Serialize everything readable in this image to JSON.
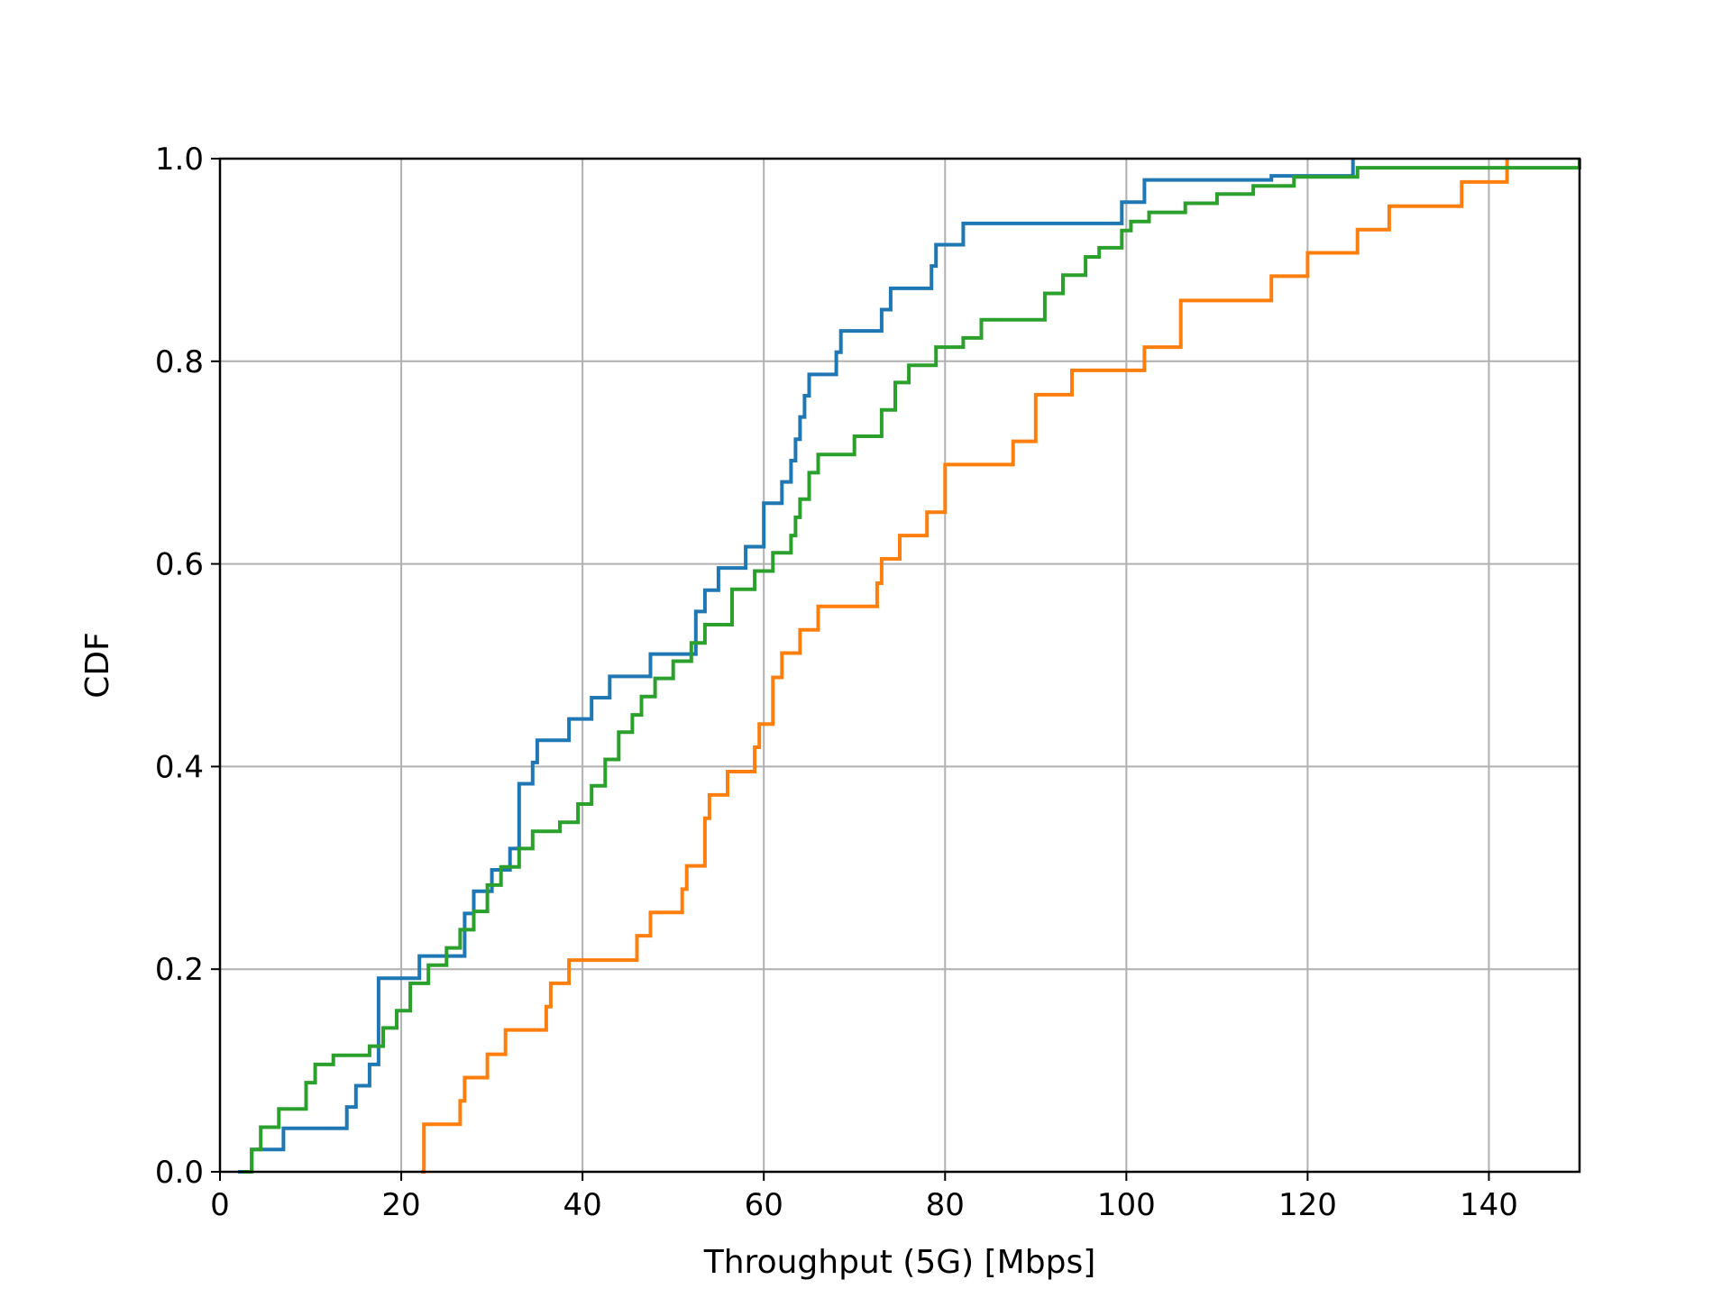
{
  "chart_data": {
    "type": "line",
    "step": true,
    "title": "",
    "xlabel": "Throughput (5G) [Mbps]",
    "ylabel": "CDF",
    "xlim": [
      0,
      150
    ],
    "ylim": [
      0,
      1
    ],
    "xticks": [
      0,
      20,
      40,
      60,
      80,
      100,
      120,
      140
    ],
    "yticks": [
      0.0,
      0.2,
      0.4,
      0.6,
      0.8,
      1.0
    ],
    "xtick_labels": [
      "0",
      "20",
      "40",
      "60",
      "80",
      "100",
      "120",
      "140"
    ],
    "ytick_labels": [
      "0.0",
      "0.2",
      "0.4",
      "0.6",
      "0.8",
      "1.0"
    ],
    "grid": true,
    "series": [
      {
        "color": "#1f77b4",
        "x": [
          2,
          3.5,
          7,
          14,
          15,
          16.5,
          17.5,
          22,
          27,
          28,
          30,
          32,
          33,
          34.5,
          35,
          38.5,
          41,
          43,
          47.5,
          52.5,
          53.5,
          55,
          58,
          60,
          62,
          63,
          63.5,
          64,
          64.5,
          65,
          68,
          68.5,
          73,
          74,
          78.5,
          79,
          82,
          99.5,
          102,
          116,
          125
        ],
        "y": [
          0.0,
          0.022,
          0.043,
          0.064,
          0.085,
          0.106,
          0.191,
          0.213,
          0.255,
          0.277,
          0.298,
          0.319,
          0.383,
          0.404,
          0.426,
          0.447,
          0.468,
          0.489,
          0.511,
          0.553,
          0.574,
          0.596,
          0.617,
          0.66,
          0.681,
          0.702,
          0.723,
          0.745,
          0.766,
          0.787,
          0.809,
          0.83,
          0.851,
          0.872,
          0.894,
          0.915,
          0.936,
          0.957,
          0.979,
          0.983,
          1.0
        ]
      },
      {
        "color": "#ff7f0e",
        "x": [
          22.2,
          22.5,
          26.5,
          27,
          29.5,
          31.5,
          36,
          36.5,
          38.5,
          46,
          47.5,
          51,
          51.5,
          53.5,
          54,
          56,
          59,
          59.5,
          61,
          62,
          64,
          66,
          72.5,
          73,
          75,
          78,
          80,
          87.5,
          90,
          94,
          102,
          106,
          116,
          120,
          125.5,
          129,
          137,
          142
        ],
        "y": [
          0.0,
          0.047,
          0.07,
          0.093,
          0.116,
          0.14,
          0.163,
          0.186,
          0.209,
          0.233,
          0.256,
          0.279,
          0.302,
          0.349,
          0.372,
          0.395,
          0.419,
          0.442,
          0.488,
          0.512,
          0.535,
          0.558,
          0.581,
          0.605,
          0.628,
          0.651,
          0.698,
          0.721,
          0.767,
          0.791,
          0.814,
          0.86,
          0.884,
          0.907,
          0.93,
          0.953,
          0.977,
          1.0
        ]
      },
      {
        "color": "#2ca02c",
        "x": [
          2.5,
          3.5,
          4.5,
          6.5,
          9.5,
          10.5,
          12.5,
          16.5,
          18,
          19.5,
          21,
          23,
          25,
          26.5,
          28,
          29.5,
          31,
          33,
          34.5,
          37.5,
          39.5,
          41,
          42.5,
          44,
          45.5,
          46.5,
          48,
          50,
          52,
          53.5,
          56.5,
          59,
          61,
          63,
          63.5,
          64,
          65,
          66,
          70,
          73,
          74.5,
          76,
          79,
          82,
          84,
          91,
          93,
          95.5,
          97,
          99.5,
          100.5,
          102.5,
          106.5,
          110,
          114,
          118.5,
          125.5,
          150
        ],
        "y": [
          0.0,
          0.022,
          0.044,
          0.062,
          0.088,
          0.106,
          0.115,
          0.124,
          0.142,
          0.159,
          0.186,
          0.204,
          0.221,
          0.239,
          0.257,
          0.283,
          0.301,
          0.319,
          0.336,
          0.345,
          0.363,
          0.381,
          0.407,
          0.434,
          0.451,
          0.469,
          0.487,
          0.504,
          0.522,
          0.54,
          0.575,
          0.593,
          0.611,
          0.628,
          0.646,
          0.664,
          0.69,
          0.708,
          0.726,
          0.752,
          0.779,
          0.796,
          0.814,
          0.823,
          0.841,
          0.867,
          0.885,
          0.903,
          0.912,
          0.929,
          0.938,
          0.947,
          0.956,
          0.965,
          0.973,
          0.982,
          0.991,
          1.0
        ]
      }
    ]
  }
}
